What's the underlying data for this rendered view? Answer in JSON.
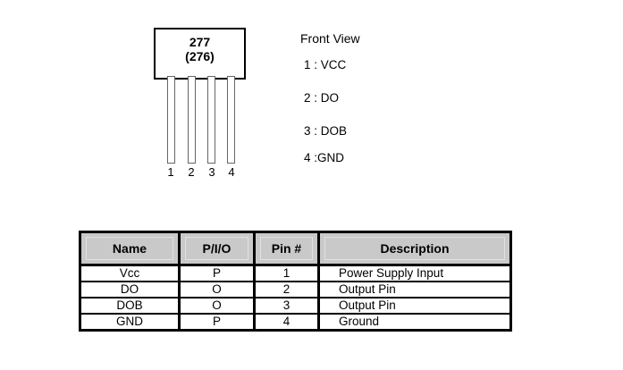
{
  "diagram": {
    "package": {
      "line1": "277",
      "line2": "(276)"
    },
    "pin_numbers": [
      "1",
      "2",
      "3",
      "4"
    ],
    "front_view": {
      "title": "Front View",
      "items": [
        "1 : VCC",
        "2 : DO",
        "3 : DOB",
        "4 :GND"
      ]
    }
  },
  "pin_table": {
    "headers": [
      "Name",
      "P/I/O",
      "Pin #",
      "Description"
    ],
    "rows": [
      [
        "Vcc",
        "P",
        "1",
        "Power Supply Input"
      ],
      [
        "DO",
        "O",
        "2",
        "Output Pin"
      ],
      [
        "DOB",
        "O",
        "3",
        "Output Pin"
      ],
      [
        "GND",
        "P",
        "4",
        "Ground"
      ]
    ]
  },
  "colors": {
    "background": "#ffffff",
    "table_header_bg": "#c9c9c9",
    "table_border": "#000000",
    "package_border": "#000000",
    "pin_outline": "#666666",
    "header_inset_outline": "#e2e2e2"
  }
}
